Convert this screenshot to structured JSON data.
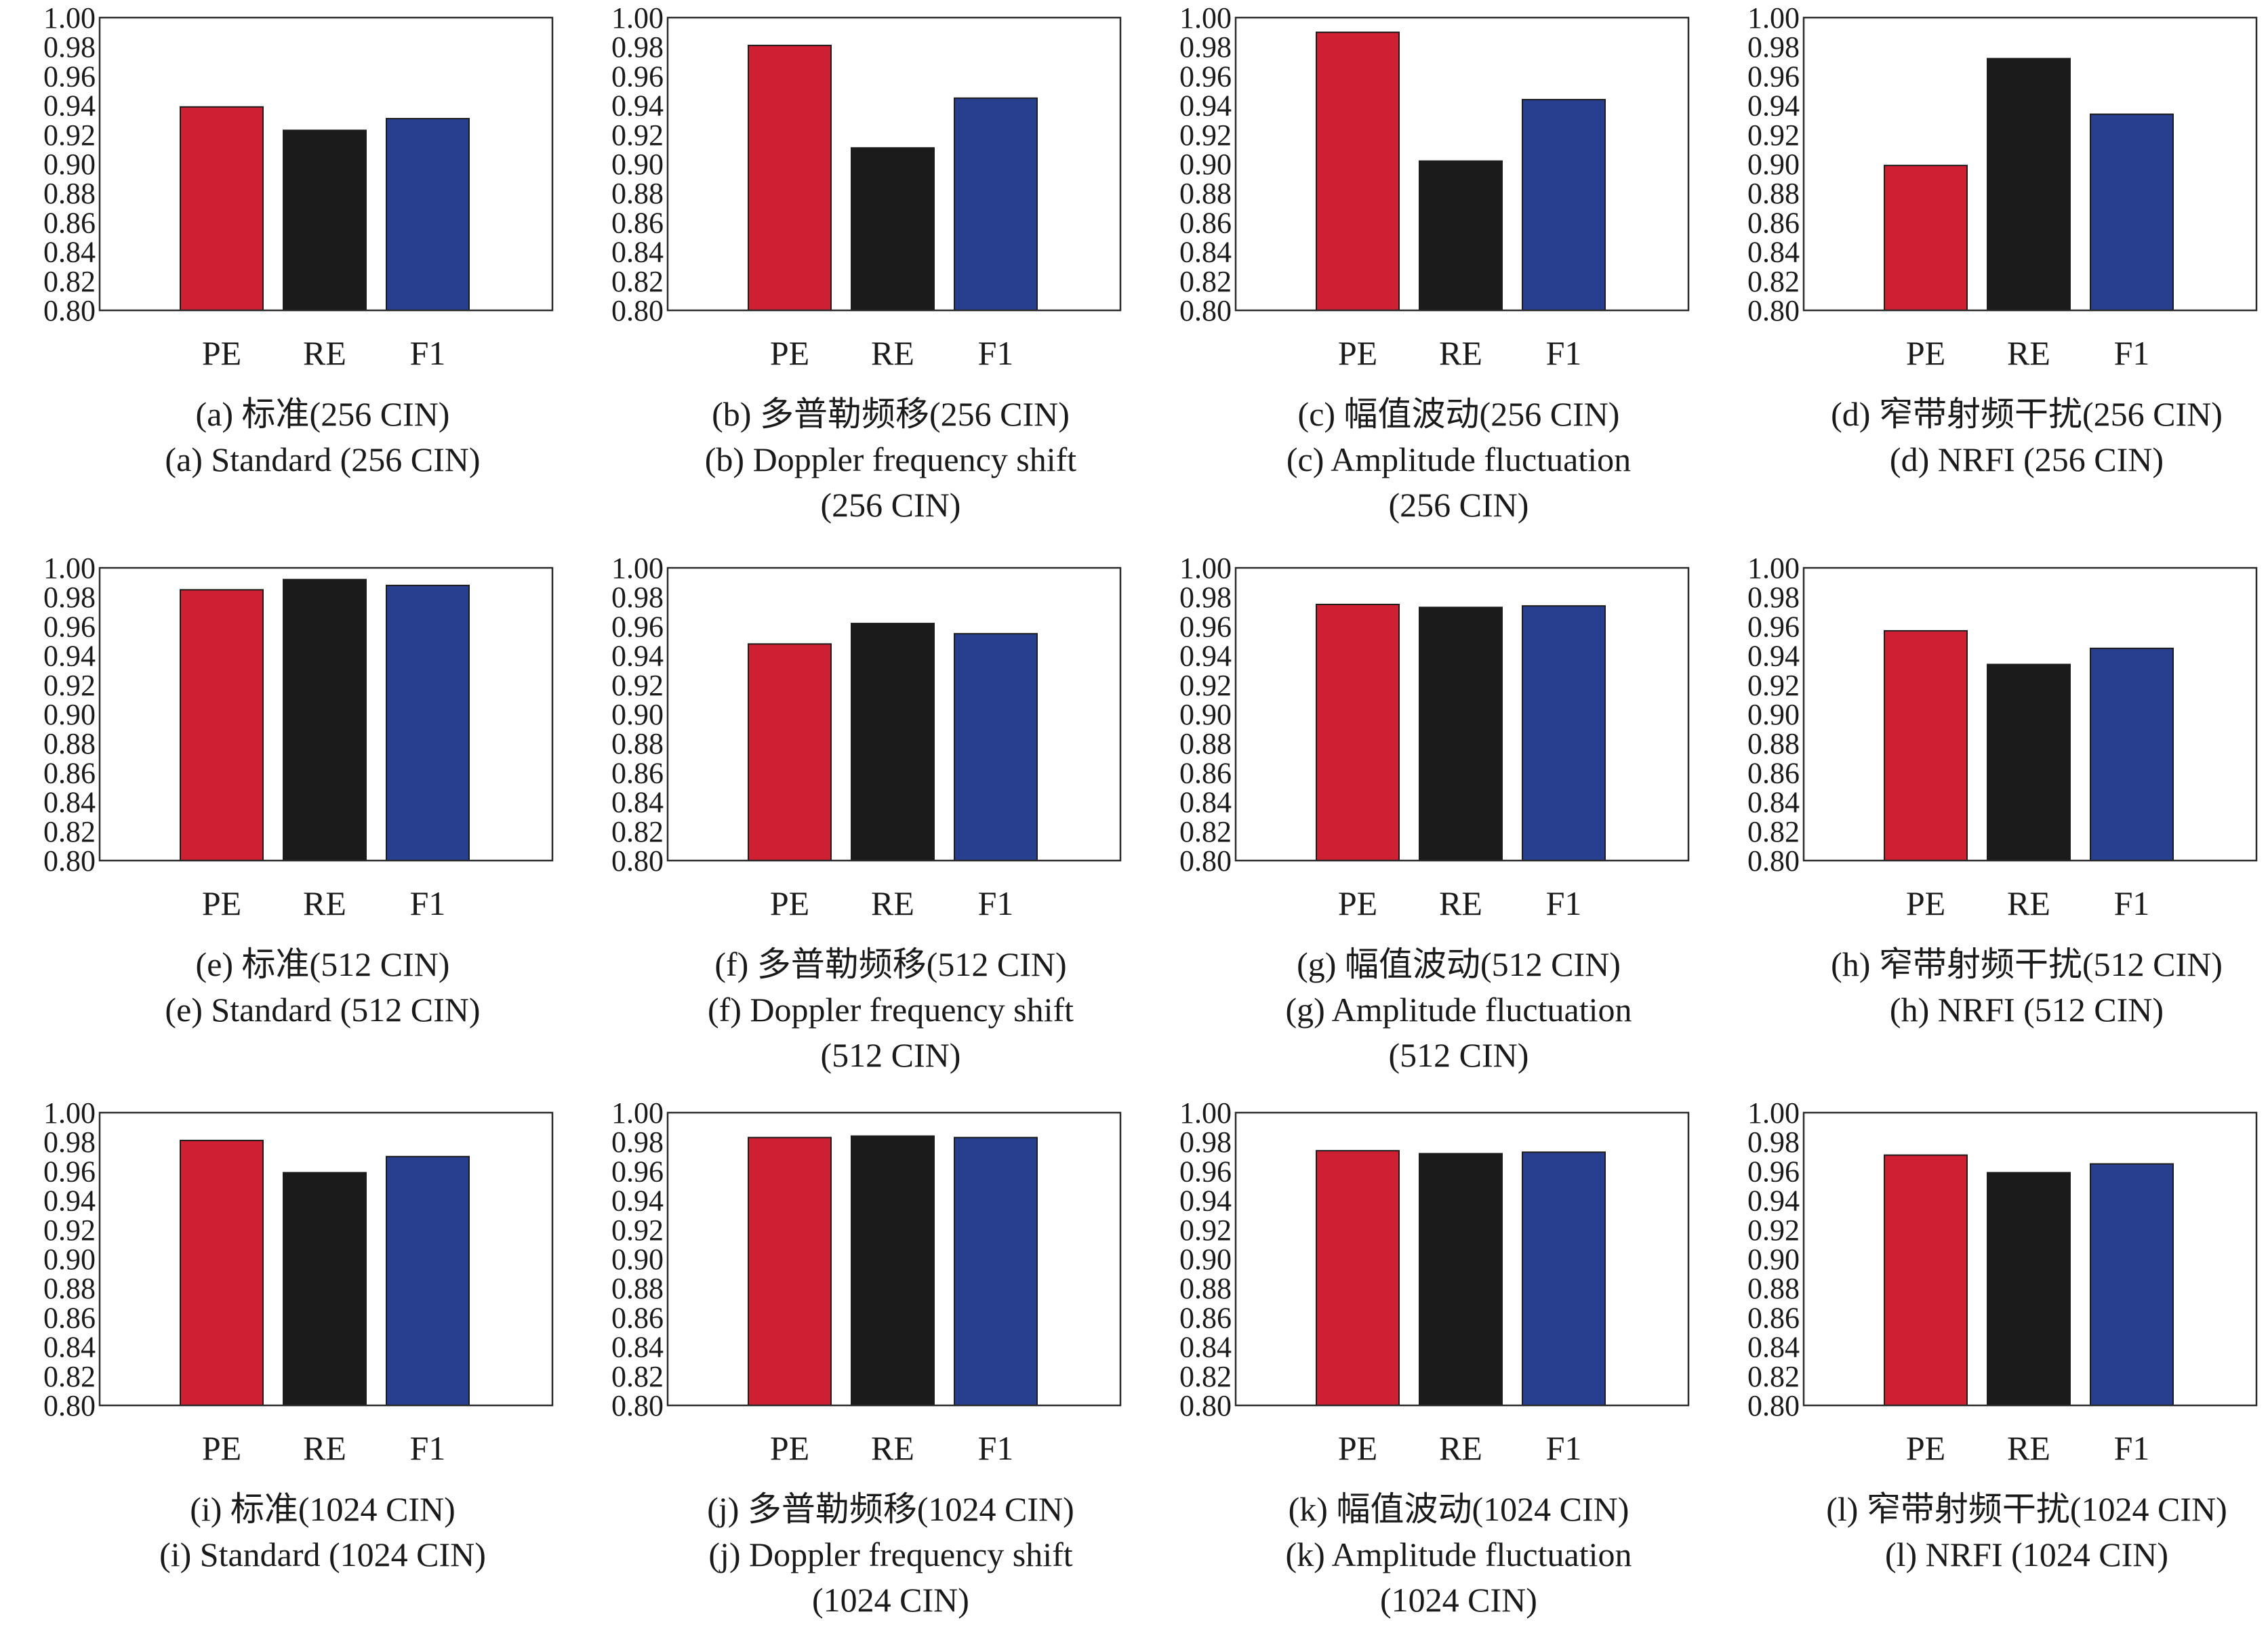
{
  "colors": {
    "PE": "#cf2033",
    "RE": "#1b1b1b",
    "F1": "#273f8e"
  },
  "chart_data": [
    {
      "type": "bar",
      "categories": [
        "PE",
        "RE",
        "F1"
      ],
      "values": [
        0.939,
        0.923,
        0.931
      ],
      "ylim": [
        0.8,
        1.0
      ],
      "yticks": [
        "1.00",
        "0.98",
        "0.96",
        "0.94",
        "0.92",
        "0.90",
        "0.88",
        "0.86",
        "0.84",
        "0.82",
        "0.80"
      ],
      "caption": [
        "(a) 标准(256 CIN)",
        "(a)  Standard (256 CIN)"
      ]
    },
    {
      "type": "bar",
      "categories": [
        "PE",
        "RE",
        "F1"
      ],
      "values": [
        0.981,
        0.911,
        0.945
      ],
      "ylim": [
        0.8,
        1.0
      ],
      "yticks": [
        "1.00",
        "0.98",
        "0.96",
        "0.94",
        "0.92",
        "0.90",
        "0.88",
        "0.86",
        "0.84",
        "0.82",
        "0.80"
      ],
      "caption": [
        "(b) 多普勒频移(256 CIN)",
        "(b) Doppler frequency shift",
        "(256 CIN)"
      ]
    },
    {
      "type": "bar",
      "categories": [
        "PE",
        "RE",
        "F1"
      ],
      "values": [
        0.99,
        0.902,
        0.944
      ],
      "ylim": [
        0.8,
        1.0
      ],
      "yticks": [
        "1.00",
        "0.98",
        "0.96",
        "0.94",
        "0.92",
        "0.90",
        "0.88",
        "0.86",
        "0.84",
        "0.82",
        "0.80"
      ],
      "caption": [
        "(c) 幅值波动(256 CIN)",
        "(c) Amplitude fluctuation",
        "(256 CIN)"
      ]
    },
    {
      "type": "bar",
      "categories": [
        "PE",
        "RE",
        "F1"
      ],
      "values": [
        0.899,
        0.972,
        0.934
      ],
      "ylim": [
        0.8,
        1.0
      ],
      "yticks": [
        "1.00",
        "0.98",
        "0.96",
        "0.94",
        "0.92",
        "0.90",
        "0.88",
        "0.86",
        "0.84",
        "0.82",
        "0.80"
      ],
      "caption": [
        "(d) 窄带射频干扰(256 CIN)",
        "(d) NRFI (256 CIN)"
      ]
    },
    {
      "type": "bar",
      "categories": [
        "PE",
        "RE",
        "F1"
      ],
      "values": [
        0.985,
        0.992,
        0.988
      ],
      "ylim": [
        0.8,
        1.0
      ],
      "yticks": [
        "1.00",
        "0.98",
        "0.96",
        "0.94",
        "0.92",
        "0.90",
        "0.88",
        "0.86",
        "0.84",
        "0.82",
        "0.80"
      ],
      "caption": [
        "(e) 标准(512 CIN)",
        "(e) Standard (512 CIN)"
      ]
    },
    {
      "type": "bar",
      "categories": [
        "PE",
        "RE",
        "F1"
      ],
      "values": [
        0.948,
        0.962,
        0.955
      ],
      "ylim": [
        0.8,
        1.0
      ],
      "yticks": [
        "1.00",
        "0.98",
        "0.96",
        "0.94",
        "0.92",
        "0.90",
        "0.88",
        "0.86",
        "0.84",
        "0.82",
        "0.80"
      ],
      "caption": [
        "(f) 多普勒频移(512 CIN)",
        "(f) Doppler frequency shift",
        "(512 CIN)"
      ]
    },
    {
      "type": "bar",
      "categories": [
        "PE",
        "RE",
        "F1"
      ],
      "values": [
        0.975,
        0.973,
        0.974
      ],
      "ylim": [
        0.8,
        1.0
      ],
      "yticks": [
        "1.00",
        "0.98",
        "0.96",
        "0.94",
        "0.92",
        "0.90",
        "0.88",
        "0.86",
        "0.84",
        "0.82",
        "0.80"
      ],
      "caption": [
        "(g) 幅值波动(512 CIN)",
        "(g) Amplitude fluctuation",
        "(512 CIN)"
      ]
    },
    {
      "type": "bar",
      "categories": [
        "PE",
        "RE",
        "F1"
      ],
      "values": [
        0.957,
        0.934,
        0.945
      ],
      "ylim": [
        0.8,
        1.0
      ],
      "yticks": [
        "1.00",
        "0.98",
        "0.96",
        "0.94",
        "0.92",
        "0.90",
        "0.88",
        "0.86",
        "0.84",
        "0.82",
        "0.80"
      ],
      "caption": [
        "(h) 窄带射频干扰(512 CIN)",
        "(h) NRFI (512 CIN)"
      ]
    },
    {
      "type": "bar",
      "categories": [
        "PE",
        "RE",
        "F1"
      ],
      "values": [
        0.981,
        0.959,
        0.97
      ],
      "ylim": [
        0.8,
        1.0
      ],
      "yticks": [
        "1.00",
        "0.98",
        "0.96",
        "0.94",
        "0.92",
        "0.90",
        "0.88",
        "0.86",
        "0.84",
        "0.82",
        "0.80"
      ],
      "caption": [
        "(i) 标准(1024 CIN)",
        "(i) Standard (1024 CIN)"
      ]
    },
    {
      "type": "bar",
      "categories": [
        "PE",
        "RE",
        "F1"
      ],
      "values": [
        0.983,
        0.984,
        0.983
      ],
      "ylim": [
        0.8,
        1.0
      ],
      "yticks": [
        "1.00",
        "0.98",
        "0.96",
        "0.94",
        "0.92",
        "0.90",
        "0.88",
        "0.86",
        "0.84",
        "0.82",
        "0.80"
      ],
      "caption": [
        "(j) 多普勒频移(1024 CIN)",
        "(j) Doppler frequency shift",
        "(1024 CIN)"
      ]
    },
    {
      "type": "bar",
      "categories": [
        "PE",
        "RE",
        "F1"
      ],
      "values": [
        0.974,
        0.972,
        0.973
      ],
      "ylim": [
        0.8,
        1.0
      ],
      "yticks": [
        "1.00",
        "0.98",
        "0.96",
        "0.94",
        "0.92",
        "0.90",
        "0.88",
        "0.86",
        "0.84",
        "0.82",
        "0.80"
      ],
      "caption": [
        "(k) 幅值波动(1024 CIN)",
        "(k) Amplitude fluctuation",
        "(1024 CIN)"
      ]
    },
    {
      "type": "bar",
      "categories": [
        "PE",
        "RE",
        "F1"
      ],
      "values": [
        0.971,
        0.959,
        0.965
      ],
      "ylim": [
        0.8,
        1.0
      ],
      "yticks": [
        "1.00",
        "0.98",
        "0.96",
        "0.94",
        "0.92",
        "0.90",
        "0.88",
        "0.86",
        "0.84",
        "0.82",
        "0.80"
      ],
      "caption": [
        "(l) 窄带射频干扰(1024 CIN)",
        "(l) NRFI (1024 CIN)"
      ]
    }
  ]
}
